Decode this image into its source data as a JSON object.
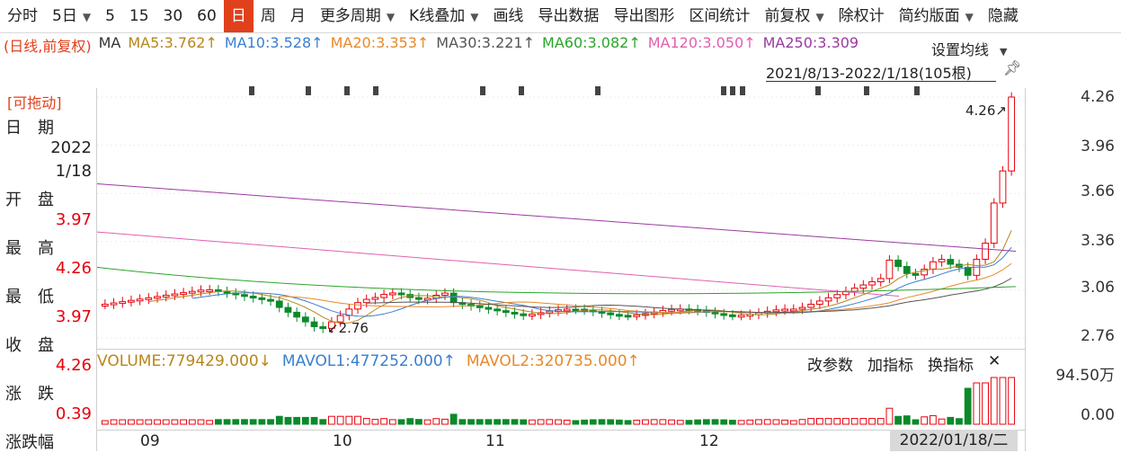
{
  "toolbar": {
    "items": [
      {
        "label": "分时",
        "dropdown": false,
        "active": false
      },
      {
        "label": "5日",
        "dropdown": true,
        "active": false
      },
      {
        "label": "5",
        "dropdown": false,
        "active": false
      },
      {
        "label": "15",
        "dropdown": false,
        "active": false
      },
      {
        "label": "30",
        "dropdown": false,
        "active": false
      },
      {
        "label": "60",
        "dropdown": false,
        "active": false
      },
      {
        "label": "日",
        "dropdown": false,
        "active": true
      },
      {
        "label": "周",
        "dropdown": false,
        "active": false
      },
      {
        "label": "月",
        "dropdown": false,
        "active": false
      },
      {
        "label": "更多周期",
        "dropdown": true,
        "active": false
      },
      {
        "label": "K线叠加",
        "dropdown": true,
        "active": false
      },
      {
        "label": "画线",
        "dropdown": false,
        "active": false
      },
      {
        "label": "导出数据",
        "dropdown": false,
        "active": false
      },
      {
        "label": "导出图形",
        "dropdown": false,
        "active": false
      },
      {
        "label": "区间统计",
        "dropdown": false,
        "active": false
      },
      {
        "label": "前复权",
        "dropdown": true,
        "active": false
      },
      {
        "label": "除权计",
        "dropdown": false,
        "active": false
      },
      {
        "label": "简约版面",
        "dropdown": true,
        "active": false
      },
      {
        "label": "隐藏",
        "dropdown": false,
        "active": false
      }
    ]
  },
  "ma_bar": {
    "prefix": "(日线,前复权)",
    "ma": "MA",
    "items": [
      {
        "label": "MA5:3.762↑",
        "color": "#b8861a"
      },
      {
        "label": "MA10:3.528↑",
        "color": "#3a7fd0"
      },
      {
        "label": "MA20:3.353↑",
        "color": "#e8892a"
      },
      {
        "label": "MA30:3.221↑",
        "color": "#555555"
      },
      {
        "label": "MA60:3.082↑",
        "color": "#2aa52a"
      },
      {
        "label": "MA120:3.050↑",
        "color": "#e060b0"
      },
      {
        "label": "MA250:3.309",
        "color": "#9a3aa0"
      }
    ],
    "settings_label": "设置均线",
    "range_label": "2021/8/13-2022/1/18(105根)"
  },
  "info_panel": {
    "drag_label": "[可拖动]",
    "rows": [
      {
        "label": "日　期",
        "value": ""
      },
      {
        "label": "",
        "value": "2022"
      },
      {
        "label": "",
        "value": "1/18"
      },
      {
        "label": "开　盘",
        "value": ""
      },
      {
        "label": "",
        "value": "3.97",
        "red": true
      },
      {
        "label": "最　高",
        "value": ""
      },
      {
        "label": "",
        "value": "4.26",
        "red": true
      },
      {
        "label": "最　低",
        "value": ""
      },
      {
        "label": "",
        "value": "3.97",
        "red": true
      },
      {
        "label": "收　盘",
        "value": ""
      },
      {
        "label": "",
        "value": "4.26",
        "red": true
      },
      {
        "label": "涨　跌",
        "value": ""
      },
      {
        "label": "",
        "value": "0.39",
        "red": true
      },
      {
        "label": "涨跌幅",
        "value": ""
      }
    ]
  },
  "y_axis": {
    "ticks": [
      "4.26",
      "3.96",
      "3.66",
      "3.36",
      "3.06",
      "2.76"
    ],
    "vol_ticks": [
      "94.50万",
      "0.00"
    ]
  },
  "annotations": {
    "high": "4.26",
    "low": "2.76"
  },
  "volume": {
    "main": "VOLUME:779429.000↓",
    "mavol1": "MAVOL1:477252.000↑",
    "mavol2": "MAVOL2:320735.000↑",
    "tools": [
      "改参数",
      "加指标",
      "换指标",
      "✕"
    ]
  },
  "x_axis": {
    "labels": [
      "09",
      "10",
      "11",
      "12"
    ],
    "cursor_date": "2022/01/18/二"
  },
  "colors": {
    "up": "#e8000b",
    "down": "#0a8a2a",
    "active_tab": "#e0401c"
  }
}
